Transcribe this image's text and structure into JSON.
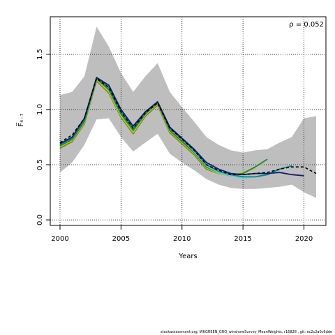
{
  "chart_data": {
    "type": "line",
    "xlabel": "Years",
    "ylabel": "F̅₄₋₇",
    "xlim": [
      1999.2,
      2021.8
    ],
    "ylim": [
      -0.05,
      1.84
    ],
    "xticks": [
      2000,
      2005,
      2010,
      2015,
      2020
    ],
    "yticks": [
      0.0,
      0.5,
      1.0,
      1.5
    ],
    "ytick_labels": [
      "0.0",
      "0.5",
      "1.0",
      "1.5"
    ],
    "grid": "dotted",
    "annotation": "ρ = 0.052",
    "band": {
      "x": [
        2000,
        2001,
        2002,
        2003,
        2004,
        2005,
        2006,
        2007,
        2008,
        2009,
        2010,
        2011,
        2012,
        2013,
        2014,
        2015,
        2016,
        2017,
        2018,
        2019,
        2020,
        2021
      ],
      "upper": [
        1.13,
        1.16,
        1.3,
        1.75,
        1.57,
        1.33,
        1.16,
        1.3,
        1.42,
        1.16,
        1.02,
        0.89,
        0.75,
        0.68,
        0.63,
        0.61,
        0.63,
        0.64,
        0.7,
        0.75,
        0.92,
        0.94
      ],
      "lower": [
        0.43,
        0.52,
        0.68,
        0.91,
        0.92,
        0.75,
        0.62,
        0.7,
        0.78,
        0.6,
        0.52,
        0.45,
        0.37,
        0.32,
        0.29,
        0.28,
        0.28,
        0.29,
        0.3,
        0.32,
        0.25,
        0.2
      ],
      "color": "#bebebe"
    },
    "series": [
      {
        "color": "#000000",
        "dash": true,
        "x": [
          2000,
          2001,
          2002,
          2003,
          2004,
          2005,
          2006,
          2007,
          2008,
          2009,
          2010,
          2011,
          2012,
          2013,
          2014,
          2015,
          2016,
          2017,
          2018,
          2019,
          2020,
          2021
        ],
        "values": [
          0.7,
          0.77,
          0.92,
          1.28,
          1.2,
          0.98,
          0.83,
          0.97,
          1.06,
          0.83,
          0.73,
          0.63,
          0.5,
          0.45,
          0.41,
          0.41,
          0.42,
          0.43,
          0.46,
          0.48,
          0.48,
          0.42
        ]
      },
      {
        "color": "#191970",
        "dash": false,
        "x": [
          2000,
          2001,
          2002,
          2003,
          2004,
          2005,
          2006,
          2007,
          2008,
          2009,
          2010,
          2011,
          2012,
          2013,
          2014,
          2015,
          2016,
          2017,
          2018,
          2019,
          2020
        ],
        "values": [
          0.69,
          0.75,
          0.92,
          1.29,
          1.22,
          1.0,
          0.85,
          0.98,
          1.07,
          0.84,
          0.74,
          0.64,
          0.52,
          0.46,
          0.42,
          0.41,
          0.42,
          0.42,
          0.43,
          0.41,
          0.4
        ]
      },
      {
        "color": "#008b8b",
        "dash": false,
        "x": [
          2000,
          2001,
          2002,
          2003,
          2004,
          2005,
          2006,
          2007,
          2008,
          2009,
          2010,
          2011,
          2012,
          2013,
          2014,
          2015,
          2016,
          2017,
          2018,
          2019
        ],
        "values": [
          0.68,
          0.74,
          0.91,
          1.29,
          1.2,
          0.98,
          0.83,
          0.97,
          1.07,
          0.83,
          0.73,
          0.63,
          0.5,
          0.44,
          0.41,
          0.39,
          0.39,
          0.41,
          0.46,
          0.49
        ]
      },
      {
        "color": "#5fcfdf",
        "dash": false,
        "x": [
          2000,
          2001,
          2002,
          2003,
          2004,
          2005,
          2006,
          2007,
          2008,
          2009,
          2010,
          2011,
          2012,
          2013,
          2014,
          2015,
          2016,
          2017,
          2018
        ],
        "values": [
          0.68,
          0.74,
          0.91,
          1.29,
          1.2,
          0.98,
          0.83,
          0.97,
          1.07,
          0.83,
          0.73,
          0.62,
          0.49,
          0.43,
          0.4,
          0.38,
          0.39,
          0.41,
          0.45
        ]
      },
      {
        "color": "#228b22",
        "dash": false,
        "x": [
          2000,
          2001,
          2002,
          2003,
          2004,
          2005,
          2006,
          2007,
          2008,
          2009,
          2010,
          2011,
          2012,
          2013,
          2014,
          2015,
          2016,
          2017
        ],
        "values": [
          0.67,
          0.73,
          0.89,
          1.28,
          1.18,
          0.96,
          0.81,
          0.96,
          1.06,
          0.81,
          0.71,
          0.61,
          0.48,
          0.43,
          0.4,
          0.42,
          0.48,
          0.55
        ]
      },
      {
        "color": "#9acd32",
        "dash": false,
        "x": [
          2000,
          2001,
          2002,
          2003,
          2004,
          2005,
          2006,
          2007,
          2008,
          2009,
          2010,
          2011,
          2012,
          2013,
          2014,
          2015,
          2016
        ],
        "values": [
          0.66,
          0.72,
          0.88,
          1.27,
          1.16,
          0.94,
          0.79,
          0.95,
          1.05,
          0.8,
          0.7,
          0.6,
          0.47,
          0.42,
          0.4,
          0.43,
          0.47
        ]
      },
      {
        "color": "#8b7500",
        "dash": false,
        "x": [
          2000,
          2001,
          2002,
          2003,
          2004,
          2005,
          2006,
          2007,
          2008,
          2009,
          2010,
          2011,
          2012,
          2013,
          2014,
          2015
        ],
        "values": [
          0.65,
          0.71,
          0.87,
          1.26,
          1.15,
          0.93,
          0.78,
          0.94,
          1.04,
          0.79,
          0.69,
          0.59,
          0.46,
          0.42,
          0.4,
          0.42
        ]
      }
    ]
  },
  "footer": "stockassessment.org,  WKGREEN_GRO_winshoreSurvey_MeanWeights,  r16828 ,  git: ec2c2a0c6dde"
}
